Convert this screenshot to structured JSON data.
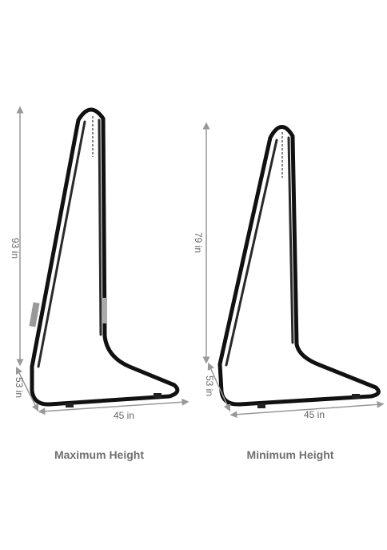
{
  "panels": [
    {
      "height": "93 in",
      "depth": "53 in",
      "width": "45 in",
      "caption": "Maximum Height"
    },
    {
      "height": "79 in",
      "depth": "53 in",
      "width": "45 in",
      "caption": "Minimum Height"
    }
  ]
}
